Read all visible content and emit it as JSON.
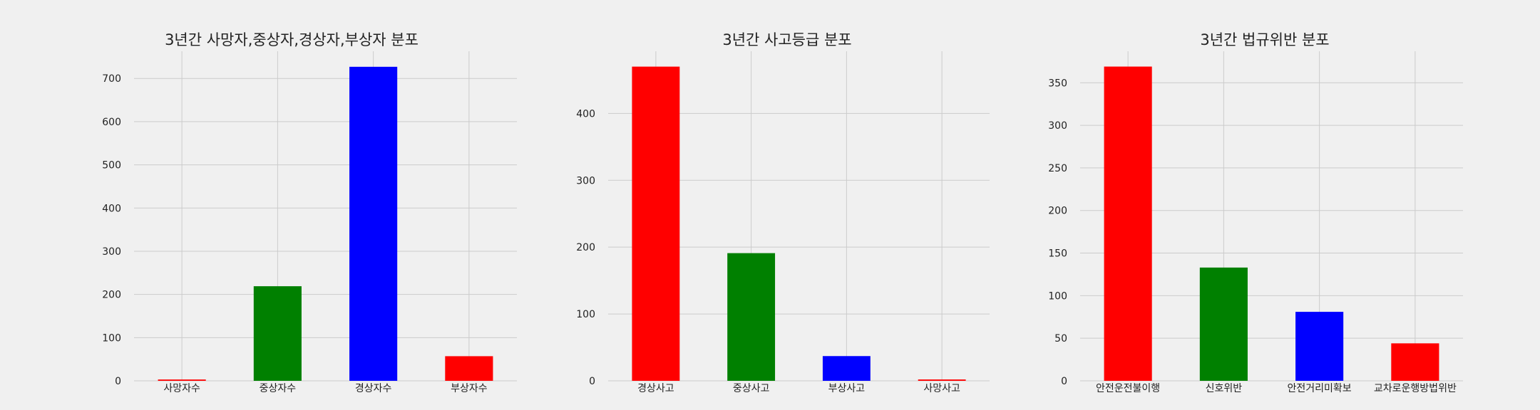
{
  "chart_data": [
    {
      "type": "bar",
      "title": "3년간 사망자,중상자,경상자,부상자 분포",
      "categories": [
        "사망자수",
        "중상자수",
        "경상자수",
        "부상자수"
      ],
      "values": [
        3,
        219,
        727,
        57
      ],
      "colors": [
        "#ff0000",
        "#008000",
        "#0000ff",
        "#ff0000"
      ],
      "yticks": [
        0,
        100,
        200,
        300,
        400,
        500,
        600,
        700
      ],
      "ylim": [
        0,
        763
      ],
      "grid": true
    },
    {
      "type": "bar",
      "title": "3년간 사고등급 분포",
      "categories": [
        "경상사고",
        "중상사고",
        "부상사고",
        "사망사고"
      ],
      "values": [
        470,
        191,
        37,
        2
      ],
      "colors": [
        "#ff0000",
        "#008000",
        "#0000ff",
        "#ff0000"
      ],
      "yticks": [
        0,
        100,
        200,
        300,
        400
      ],
      "ylim": [
        0,
        493
      ],
      "grid": true
    },
    {
      "type": "bar",
      "title": "3년간 법규위반 분포",
      "categories": [
        "안전운전불이행",
        "신호위반",
        "안전거리미확보",
        "교차로운행방법위반"
      ],
      "values": [
        369,
        133,
        81,
        44
      ],
      "colors": [
        "#ff0000",
        "#008000",
        "#0000ff",
        "#ff0000"
      ],
      "yticks": [
        0,
        50,
        100,
        150,
        200,
        250,
        300,
        350
      ],
      "ylim": [
        0,
        387
      ],
      "grid": true
    }
  ]
}
